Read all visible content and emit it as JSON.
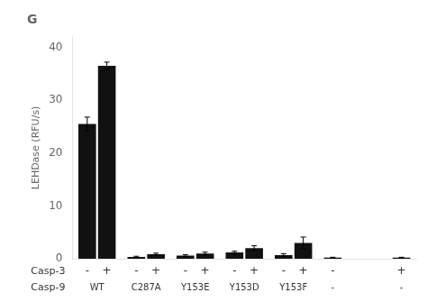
{
  "chart_data": {
    "type": "bar",
    "title": "G",
    "ylabel": "LEHDase (RFU/s)",
    "categories": [
      "WT",
      "C287A",
      "Y153E",
      "Y153D",
      "Y153F",
      "-",
      "-"
    ],
    "series": [
      {
        "name": "-",
        "color": "#111111",
        "values": [
          25.5,
          0.35,
          0.6,
          1.2,
          0.7,
          0.2,
          null
        ],
        "errors": [
          1.3,
          0.12,
          0.18,
          0.22,
          0.25,
          0.08,
          null
        ]
      },
      {
        "name": "+",
        "color": "#111111",
        "values": [
          36.5,
          0.85,
          1.0,
          2.0,
          3.0,
          null,
          0.2
        ],
        "errors": [
          0.7,
          0.2,
          0.25,
          0.45,
          1.1,
          null,
          0.08
        ]
      }
    ],
    "annotations": [
      "Casp-3",
      "Casp-9"
    ],
    "ylim": [
      0,
      42
    ],
    "yticks": [
      0,
      10,
      20,
      30,
      40
    ],
    "grid": false
  }
}
